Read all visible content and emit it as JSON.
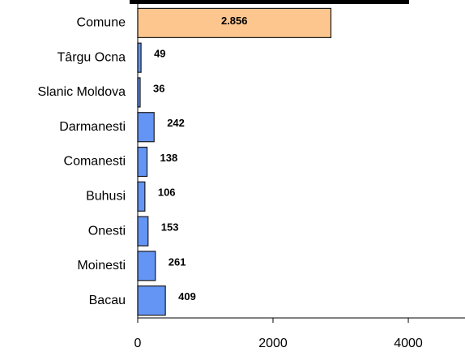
{
  "chart_data": {
    "type": "barh",
    "categories": [
      "Comune",
      "Târgu Ocna",
      "Slanic Moldova",
      "Darmanesti",
      "Comanesti",
      "Buhusi",
      "Onesti",
      "Moinesti",
      "Bacau"
    ],
    "values": [
      2856,
      49,
      36,
      242,
      138,
      106,
      153,
      261,
      409
    ],
    "value_labels": [
      "2.856",
      "49",
      "36",
      "242",
      "138",
      "106",
      "153",
      "261",
      "409"
    ],
    "colors": [
      "#fdc68f",
      "#6495f5",
      "#6495f5",
      "#6495f5",
      "#6495f5",
      "#6495f5",
      "#6495f5",
      "#6495f5",
      "#6495f5"
    ],
    "xlim": [
      0,
      4838
    ],
    "xticks": [
      0,
      2000,
      4000
    ]
  }
}
